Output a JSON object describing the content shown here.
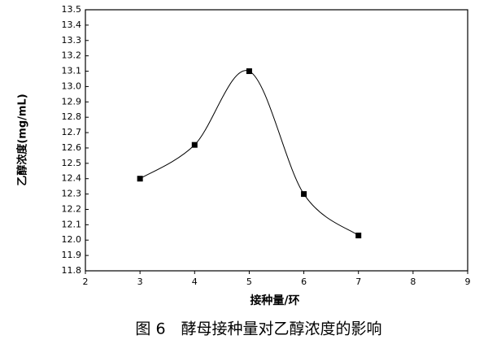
{
  "chart_data": {
    "type": "line",
    "caption": "图 6　酵母接种量对乙醇浓度的影响",
    "x_label": "接种量/环",
    "y_label": "乙醇浓度(mg/mL)",
    "x": [
      3,
      4,
      5,
      6,
      7
    ],
    "values": [
      12.4,
      12.62,
      13.1,
      12.3,
      12.03
    ],
    "color": "#000000",
    "smooth": true,
    "xlim": [
      2,
      9
    ],
    "xticks": [
      2,
      3,
      4,
      5,
      6,
      7,
      8,
      9
    ],
    "ylim": [
      11.8,
      13.5
    ],
    "yticks": [
      11.8,
      11.9,
      {
        "value": 12,
        "label": "12.0"
      },
      12.1,
      12.2,
      12.3,
      12.4,
      12.5,
      12.6,
      12.7,
      12.8,
      12.9,
      {
        "value": 13,
        "label": "13.0"
      },
      13.1,
      13.2,
      13.3,
      13.4,
      13.5
    ]
  }
}
